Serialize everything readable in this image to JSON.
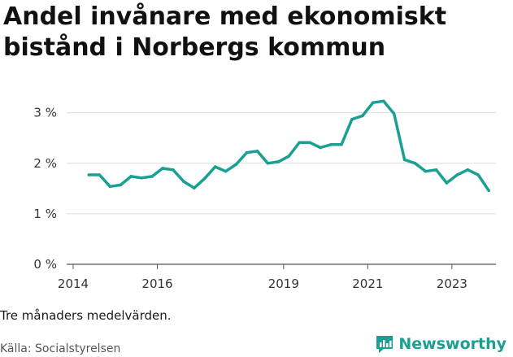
{
  "title": "Andel invånare med ekonomiskt bistånd i Norbergs kommun",
  "note": "Tre månaders medelvärden.",
  "source": "Källa: Socialstyrelsen",
  "brand": {
    "name": "Newsworthy",
    "icon": "bar-chart-logo-icon",
    "color": "#1aa093"
  },
  "chart_data": {
    "type": "line",
    "title": "Andel invånare med ekonomiskt bistånd i Norbergs kommun",
    "xlabel": "",
    "ylabel": "",
    "x_ticks": [
      "2014",
      "2016",
      "2019",
      "2021",
      "2023"
    ],
    "x_tick_years": [
      2014,
      2016,
      2019,
      2021,
      2023
    ],
    "y_ticks": [
      "0 %",
      "1 %",
      "2 %",
      "3 %"
    ],
    "y_tick_values": [
      0,
      1,
      2,
      3
    ],
    "ylim": [
      0,
      3.3
    ],
    "xlim": [
      2014.0,
      2024.2
    ],
    "grid": "horizontal",
    "legend": "none",
    "line_color": "#1aa093",
    "series": [
      {
        "x": [
          2014.375,
          2014.625,
          2014.875,
          2015.125,
          2015.375,
          2015.625,
          2015.875,
          2016.125,
          2016.375,
          2016.625,
          2016.875,
          2017.125,
          2017.375,
          2017.625,
          2017.875,
          2018.125,
          2018.375,
          2018.625,
          2018.875,
          2019.125,
          2019.375,
          2019.625,
          2019.875,
          2020.125,
          2020.375,
          2020.625,
          2020.875,
          2021.125,
          2021.375,
          2021.625,
          2021.875,
          2022.125,
          2022.375,
          2022.625,
          2022.875,
          2023.125,
          2023.375,
          2023.625,
          2023.875
        ],
        "values": [
          1.77,
          1.77,
          1.54,
          1.57,
          1.74,
          1.71,
          1.74,
          1.9,
          1.87,
          1.64,
          1.51,
          1.7,
          1.93,
          1.84,
          1.98,
          2.21,
          2.24,
          2.0,
          2.03,
          2.14,
          2.41,
          2.41,
          2.31,
          2.37,
          2.37,
          2.87,
          2.94,
          3.2,
          3.23,
          2.98,
          2.07,
          2.0,
          1.84,
          1.87,
          1.61,
          1.77,
          1.87,
          1.77,
          1.46
        ]
      }
    ]
  }
}
